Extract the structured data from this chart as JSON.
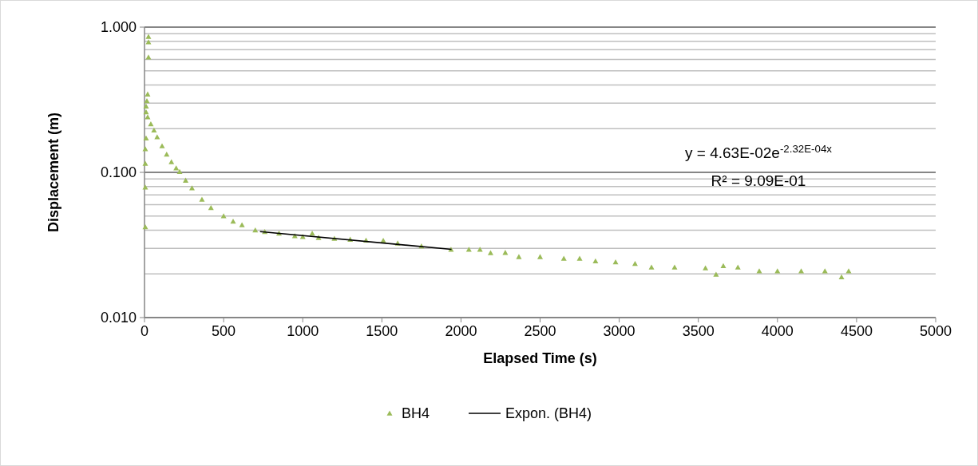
{
  "chart_data": {
    "type": "scatter",
    "xlabel": "Elapsed Time (s)",
    "ylabel": "Displacement (m)",
    "log": "y",
    "xlim": [
      0,
      5000
    ],
    "xticks": [
      0,
      500,
      1000,
      1500,
      2000,
      2500,
      3000,
      3500,
      4000,
      4500,
      5000
    ],
    "ylim": [
      0.01,
      1
    ],
    "yticks": [
      {
        "value": 0.01,
        "label": "0.010"
      },
      {
        "value": 0.1,
        "label": "0.100"
      },
      {
        "value": 1,
        "label": "1.000"
      }
    ],
    "grid": "y",
    "legend": "bottom",
    "annotations": [
      "y = 4.63E-02e$^{-2.32E-04x}$",
      "R² = 9.09E-01"
    ],
    "series": [
      {
        "name": "BH4",
        "marker": "triangle",
        "color": "#9bbb59",
        "x": [
          25,
          25,
          25,
          20,
          15,
          10,
          10,
          10,
          5,
          5,
          5,
          5,
          20,
          40,
          60,
          80,
          111,
          140,
          170,
          200,
          222,
          260,
          300,
          363,
          420,
          500,
          560,
          616,
          700,
          760,
          850,
          950,
          1000,
          1060,
          1100,
          1200,
          1300,
          1400,
          1509,
          1600,
          1750,
          1937,
          2050,
          2120,
          2187,
          2280,
          2366,
          2500,
          2650,
          2750,
          2850,
          2977,
          3100,
          3204,
          3350,
          3545,
          3612,
          3658,
          3750,
          3885,
          4000,
          4150,
          4300,
          4405,
          4450
        ],
        "values": [
          0.86,
          0.79,
          0.62,
          0.345,
          0.31,
          0.285,
          0.26,
          0.172,
          0.145,
          0.115,
          0.079,
          0.042,
          0.24,
          0.215,
          0.195,
          0.175,
          0.152,
          0.133,
          0.118,
          0.107,
          0.101,
          0.088,
          0.078,
          0.065,
          0.057,
          0.05,
          0.046,
          0.0434,
          0.04,
          0.039,
          0.038,
          0.0365,
          0.036,
          0.038,
          0.0355,
          0.035,
          0.0345,
          0.034,
          0.0339,
          0.0325,
          0.031,
          0.0294,
          0.0294,
          0.0294,
          0.0279,
          0.028,
          0.0262,
          0.0262,
          0.0255,
          0.0255,
          0.0245,
          0.0241,
          0.0235,
          0.0222,
          0.0222,
          0.0219,
          0.0198,
          0.0227,
          0.0222,
          0.0209,
          0.0209,
          0.0209,
          0.0209,
          0.019,
          0.0209
        ]
      },
      {
        "name": "Expon. (BH4)",
        "type": "line",
        "color": "#000000",
        "x": [
          730,
          1940
        ],
        "values": [
          0.0391,
          0.0295
        ]
      }
    ]
  }
}
